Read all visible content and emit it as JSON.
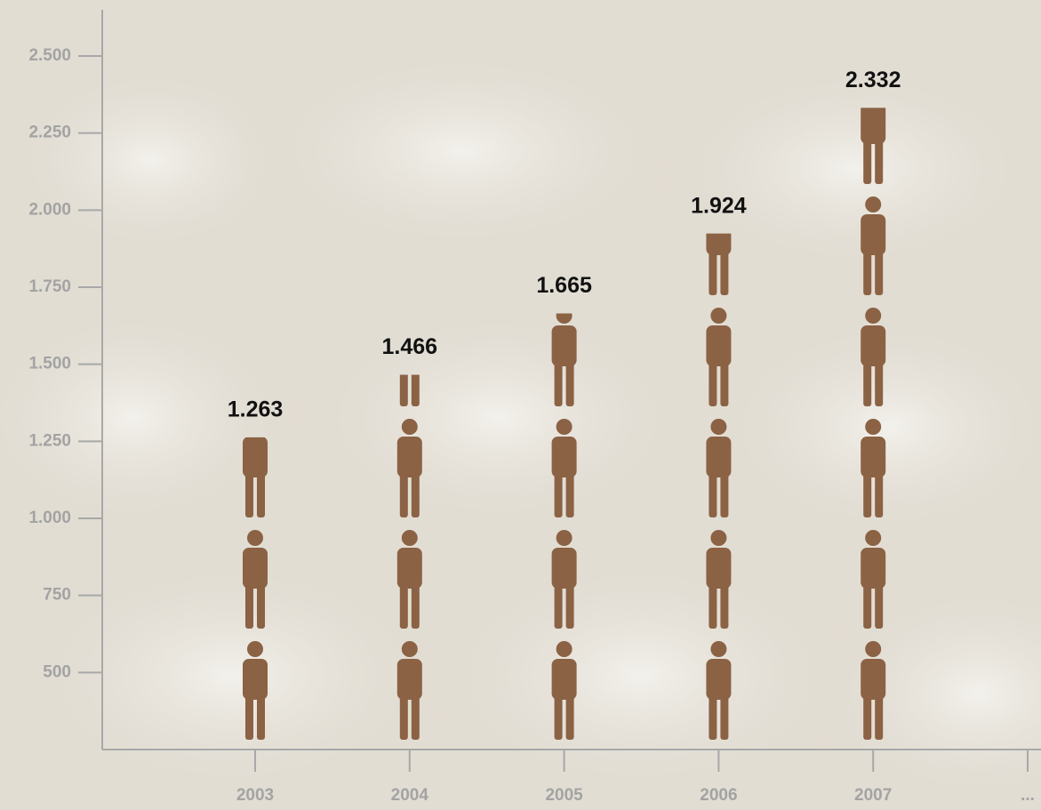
{
  "chart_data": {
    "type": "pictograph",
    "categories": [
      "2003",
      "2004",
      "2005",
      "2006",
      "2007",
      "..."
    ],
    "values": [
      1263,
      1466,
      1665,
      1924,
      2332,
      null
    ],
    "value_labels": [
      "1.263",
      "1.466",
      "1.665",
      "1.924",
      "2.332",
      null
    ],
    "color": "#8b6244",
    "ylim": [
      250,
      2650
    ],
    "yticks": [
      500,
      750,
      {
        "value": 1000,
        "label": "1.000"
      },
      {
        "value": 1250,
        "label": "1.250"
      },
      {
        "value": 1500,
        "label": "1.500"
      },
      {
        "value": 1750,
        "label": "1.750"
      },
      {
        "value": 2000,
        "label": "2.000"
      },
      {
        "value": 2250,
        "label": "2.250"
      },
      {
        "value": 2500,
        "label": "2.500"
      }
    ]
  }
}
